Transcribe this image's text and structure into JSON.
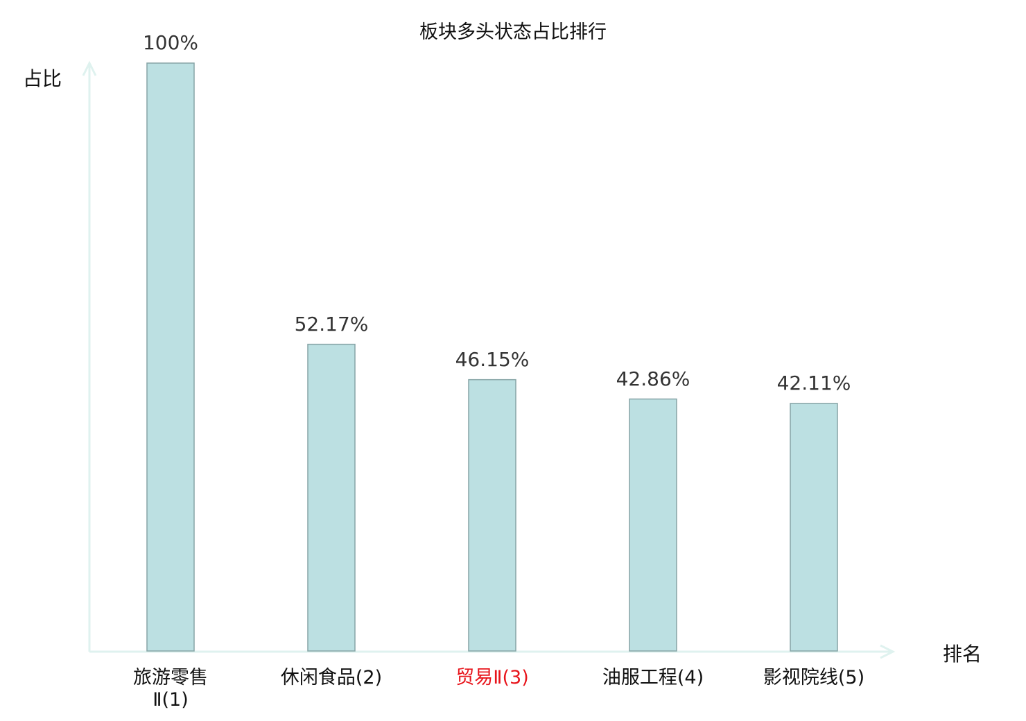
{
  "chart_data": {
    "type": "bar",
    "title": "板块多头状态占比排行",
    "xlabel": "排名",
    "ylabel": "占比",
    "categories": [
      "旅游零售Ⅱ(1)",
      "休闲食品(2)",
      "贸易Ⅱ(3)",
      "油服工程(4)",
      "影视院线(5)"
    ],
    "values": [
      100,
      52.17,
      46.15,
      42.86,
      42.11
    ],
    "data_labels": [
      "100%",
      "52.17%",
      "46.15%",
      "42.86%",
      "42.11%"
    ],
    "highlight_index": 2,
    "ylim": [
      0,
      100
    ],
    "grid": false,
    "colors": {
      "bar_fill": "#bce0e2",
      "bar_stroke": "#86a4a6",
      "axis": "#dff2ef",
      "highlight_label": "#e8141b",
      "label": "#111111"
    }
  }
}
